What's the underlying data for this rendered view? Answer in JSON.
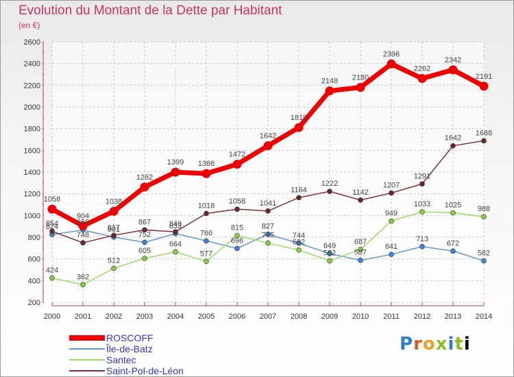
{
  "header": {
    "title": "Evolution du Montant de la Dette par Habitant",
    "unit": "(en €)"
  },
  "logo": {
    "text": "Proxiti"
  },
  "chart_data": {
    "type": "line",
    "title": "Evolution du Montant de la Dette par Habitant",
    "ylabel": "(en €)",
    "xlabel": "",
    "x": [
      "2000",
      "2001",
      "2002",
      "2003",
      "2004",
      "2005",
      "2006",
      "2007",
      "2008",
      "2009",
      "2010",
      "2011",
      "2012",
      "2013",
      "2014"
    ],
    "ylim": [
      200,
      2600
    ],
    "yticks": [
      200,
      400,
      600,
      800,
      1000,
      1200,
      1400,
      1600,
      1800,
      2000,
      2200,
      2400,
      2600
    ],
    "grid": true,
    "legend_position": "bottom-left",
    "series": [
      {
        "name": "ROSCOFF",
        "color": "#ee0000",
        "marker": "#ee0000",
        "bold": true,
        "values": [
          1058,
          904,
          1038,
          1262,
          1399,
          1386,
          1472,
          1642,
          1810,
          2148,
          2180,
          2396,
          2262,
          2342,
          2191
        ]
      },
      {
        "name": "Île-de-Batz",
        "color": "#6699cc",
        "marker": "#3b86d6",
        "values": [
          824,
          866,
          801,
          752,
          833,
          766,
          696,
          827,
          744,
          649,
          587,
          641,
          713,
          672,
          582
        ]
      },
      {
        "name": "Santec",
        "color": "#99dd66",
        "marker": "#88cc44",
        "values": [
          424,
          362,
          512,
          605,
          664,
          577,
          815,
          745,
          682,
          582,
          687,
          949,
          1033,
          1025,
          988
        ]
      },
      {
        "name": "Saint-Pol-de-Léon",
        "color": "#7a3038",
        "marker": "#6b2730",
        "values": [
          854,
          748,
          817,
          867,
          849,
          1018,
          1058,
          1041,
          1164,
          1222,
          1142,
          1207,
          1291,
          1642,
          1688
        ]
      }
    ]
  }
}
